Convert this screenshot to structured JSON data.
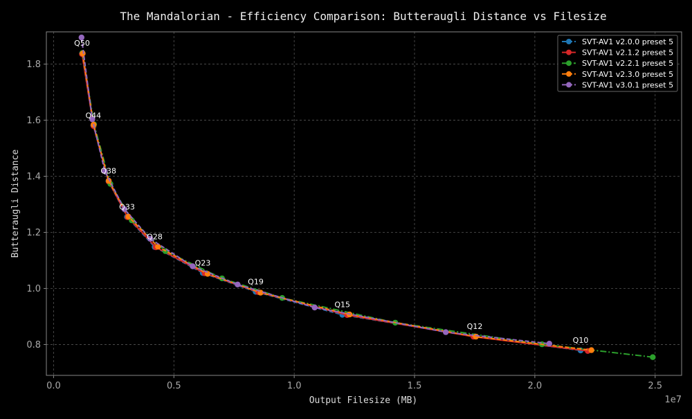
{
  "chart_data": {
    "type": "line",
    "title": "The Mandalorian - Efficiency Comparison: Butteraugli Distance vs Filesize",
    "xlabel": "Output Filesize (MB)",
    "ylabel": "Butteraugli Distance",
    "x_multiplier_label": "1e7",
    "xlim": [
      -0.03,
      2.61
    ],
    "ylim": [
      0.69,
      1.915
    ],
    "xticks": [
      0.0,
      0.5,
      1.0,
      1.5,
      2.0,
      2.5
    ],
    "xtick_labels": [
      "0.0",
      "0.5",
      "1.0",
      "1.5",
      "2.0",
      "2.5"
    ],
    "yticks": [
      0.8,
      1.0,
      1.2,
      1.4,
      1.6,
      1.8
    ],
    "ytick_labels": [
      "0.8",
      "1.0",
      "1.2",
      "1.4",
      "1.6",
      "1.8"
    ],
    "grid": true,
    "legend_position": "top-right",
    "series": [
      {
        "name": "SVT-AV1 v2.0.0 preset 5",
        "color": "#1f77b4",
        "dash": "6,3",
        "x": [
          0.118,
          0.165,
          0.228,
          0.305,
          0.42,
          0.62,
          0.84,
          1.2,
          1.75,
          2.19
        ],
        "y": [
          1.838,
          1.581,
          1.383,
          1.255,
          1.148,
          1.055,
          0.988,
          0.906,
          0.829,
          0.779
        ]
      },
      {
        "name": "SVT-AV1 v2.1.2 preset 5",
        "color": "#d62728",
        "dash": "",
        "x": [
          0.118,
          0.166,
          0.229,
          0.308,
          0.425,
          0.628,
          0.85,
          1.22,
          1.745,
          2.22
        ],
        "y": [
          1.836,
          1.579,
          1.381,
          1.254,
          1.147,
          1.054,
          0.987,
          0.905,
          0.828,
          0.777
        ]
      },
      {
        "name": "SVT-AV1 v2.2.1 preset 5",
        "color": "#2ca02c",
        "dash": "9,3,2,3",
        "x": [
          0.12,
          0.168,
          0.236,
          0.325,
          0.465,
          0.7,
          0.95,
          1.42,
          2.03,
          2.49
        ],
        "y": [
          1.84,
          1.585,
          1.373,
          1.243,
          1.133,
          1.036,
          0.966,
          0.878,
          0.801,
          0.755
        ]
      },
      {
        "name": "SVT-AV1 v2.3.0 preset 5",
        "color": "#ff7f0e",
        "dash": "6,3",
        "x": [
          0.121,
          0.166,
          0.229,
          0.311,
          0.434,
          0.64,
          0.86,
          1.23,
          1.755,
          2.235
        ],
        "y": [
          1.838,
          1.584,
          1.384,
          1.256,
          1.149,
          1.052,
          0.985,
          0.907,
          0.828,
          0.78
        ]
      },
      {
        "name": "SVT-AV1 v3.0.1 preset 5",
        "color": "#9467bd",
        "dash": "6,3",
        "x": [
          0.116,
          0.161,
          0.213,
          0.294,
          0.402,
          0.578,
          0.765,
          1.085,
          1.63,
          2.06
        ],
        "y": [
          1.895,
          1.603,
          1.418,
          1.283,
          1.177,
          1.079,
          1.014,
          0.932,
          0.844,
          0.803
        ]
      }
    ],
    "annotations": [
      {
        "text": "Q50",
        "x": 0.118,
        "y": 1.865
      },
      {
        "text": "Q44",
        "x": 0.165,
        "y": 1.608
      },
      {
        "text": "Q38",
        "x": 0.228,
        "y": 1.41
      },
      {
        "text": "Q33",
        "x": 0.305,
        "y": 1.282
      },
      {
        "text": "Q28",
        "x": 0.42,
        "y": 1.175
      },
      {
        "text": "Q23",
        "x": 0.62,
        "y": 1.082
      },
      {
        "text": "Q19",
        "x": 0.84,
        "y": 1.015
      },
      {
        "text": "Q15",
        "x": 1.2,
        "y": 0.933
      },
      {
        "text": "Q12",
        "x": 1.75,
        "y": 0.856
      },
      {
        "text": "Q10",
        "x": 2.19,
        "y": 0.806
      }
    ]
  },
  "colors": {
    "background": "#000000",
    "axes_edge": "#888888",
    "tick_text": "#aaaaaa",
    "label_text": "#dddddd",
    "grid": "#555555"
  }
}
